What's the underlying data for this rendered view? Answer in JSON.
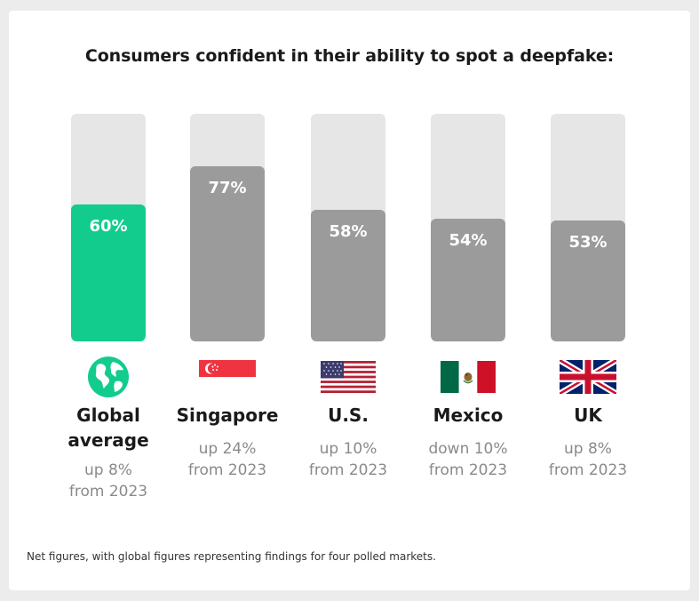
{
  "chart_data": {
    "type": "bar",
    "title": "Consumers confident in their ability to spot a deepfake:",
    "categories": [
      "Global average",
      "Singapore",
      "U.S.",
      "Mexico",
      "UK"
    ],
    "values": [
      60,
      77,
      58,
      54,
      53
    ],
    "value_labels": [
      "60%",
      "77%",
      "58%",
      "54%",
      "53%"
    ],
    "changes": [
      [
        "up 8%",
        "from 2023"
      ],
      [
        "up 24%",
        "from 2023"
      ],
      [
        "up 10%",
        "from 2023"
      ],
      [
        "down 10%",
        "from 2023"
      ],
      [
        "up 8%",
        "from 2023"
      ]
    ],
    "ylim": [
      0,
      100
    ],
    "name_lines": [
      [
        "Global",
        "average"
      ],
      [
        "Singapore"
      ],
      [
        "U.S."
      ],
      [
        "Mexico"
      ],
      [
        "UK"
      ]
    ],
    "icons": [
      "globe-icon",
      "singapore-flag-icon",
      "us-flag-icon",
      "mexico-flag-icon",
      "uk-flag-icon"
    ],
    "colors": {
      "highlight": "#12cc8e",
      "bar": "#9b9b9b",
      "track": "#e6e6e6"
    }
  },
  "footnote": "Net figures, with global figures representing findings for four polled markets."
}
